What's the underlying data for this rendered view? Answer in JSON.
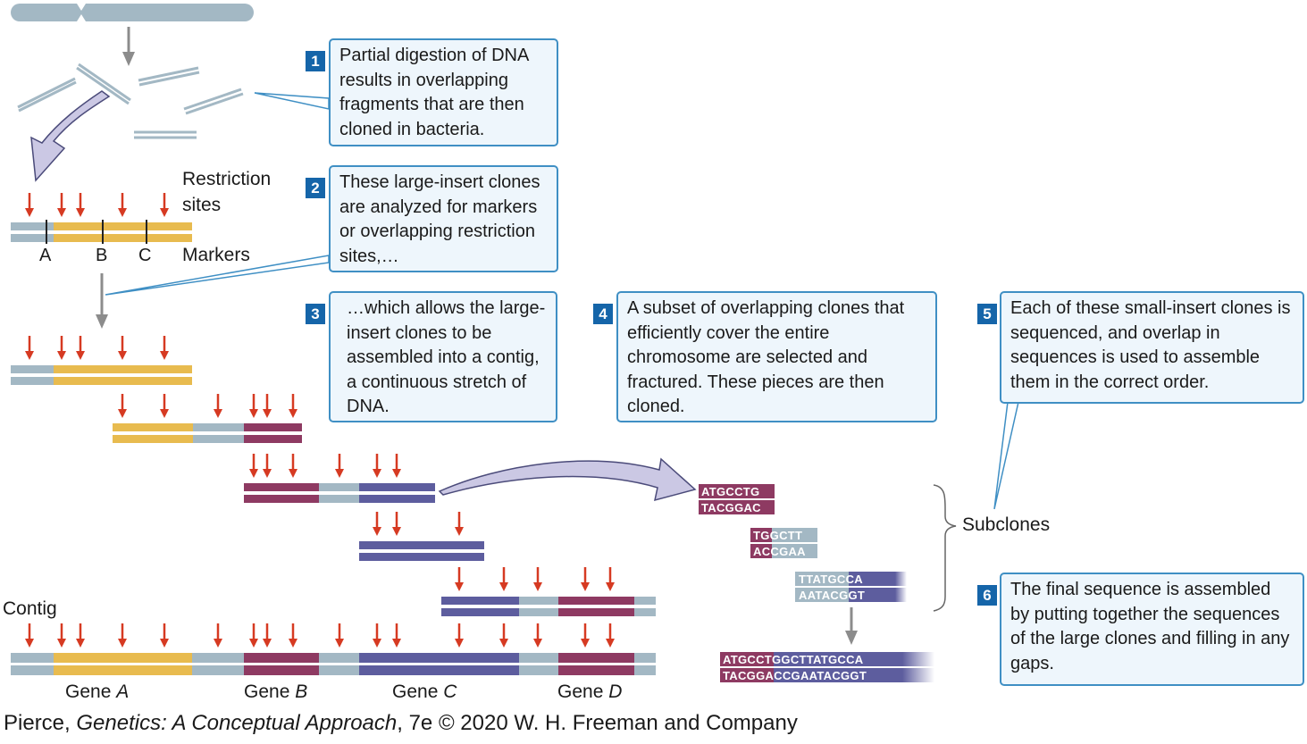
{
  "steps": [
    {
      "num": "1",
      "text": "Partial digestion of DNA results in overlapping fragments that are then cloned in bacteria."
    },
    {
      "num": "2",
      "text": "These large-insert clones are analyzed for markers or overlapping restriction sites,…"
    },
    {
      "num": "3",
      "text": "…which allows the large-insert clones to be assembled into a contig, a continuous stretch of DNA."
    },
    {
      "num": "4",
      "text": "A subset of overlapping clones that efficiently cover the entire chromosome are selected and fractured. These pieces are then cloned."
    },
    {
      "num": "5",
      "text": "Each of these small-insert clones is sequenced, and overlap in sequences is used to assemble them in the correct order."
    },
    {
      "num": "6",
      "text": "The final sequence is assembled by putting together the sequences of the large clones and filling in any gaps."
    }
  ],
  "labels": {
    "restriction_sites_1": "Restriction",
    "restriction_sites_2": "sites",
    "markers": "Markers",
    "marker_a": "A",
    "marker_b": "B",
    "marker_c": "C",
    "subclones": "Subclones",
    "contig": "Contig"
  },
  "genes": [
    {
      "prefix": "Gene ",
      "name": "A"
    },
    {
      "prefix": "Gene ",
      "name": "B"
    },
    {
      "prefix": "Gene ",
      "name": "C"
    },
    {
      "prefix": "Gene ",
      "name": "D"
    }
  ],
  "sequences": {
    "sub1_top": "ATGCCTG",
    "sub1_bottom": "TACGGAC",
    "sub2_top_a": "TG",
    "sub2_top_b": "GCTT",
    "sub2_bottom_a": "AC",
    "sub2_bottom_b": "CGAA",
    "sub3_top": "TTATGCCA",
    "sub3_bottom": "AATACGGT",
    "final_top_a": "ATGCCTG",
    "final_top_b": "GCTTATGCCA",
    "final_bottom_a": "TACGGAC",
    "final_bottom_b": "CGAATACGGT"
  },
  "credit": {
    "author": "Pierce, ",
    "title": "Genetics: A Conceptual Approach",
    "rest": ", 7e © 2020 W. H. Freeman and Company"
  },
  "colors": {
    "gray": "#a3b8c4",
    "yellow": "#e8bb4f",
    "maroon": "#8e3a62",
    "purple": "#5d5d9e",
    "arrow_red": "#d63a22",
    "box_border": "#3f8fc4",
    "box_fill": "#eef6fc",
    "badge": "#1565a9"
  }
}
